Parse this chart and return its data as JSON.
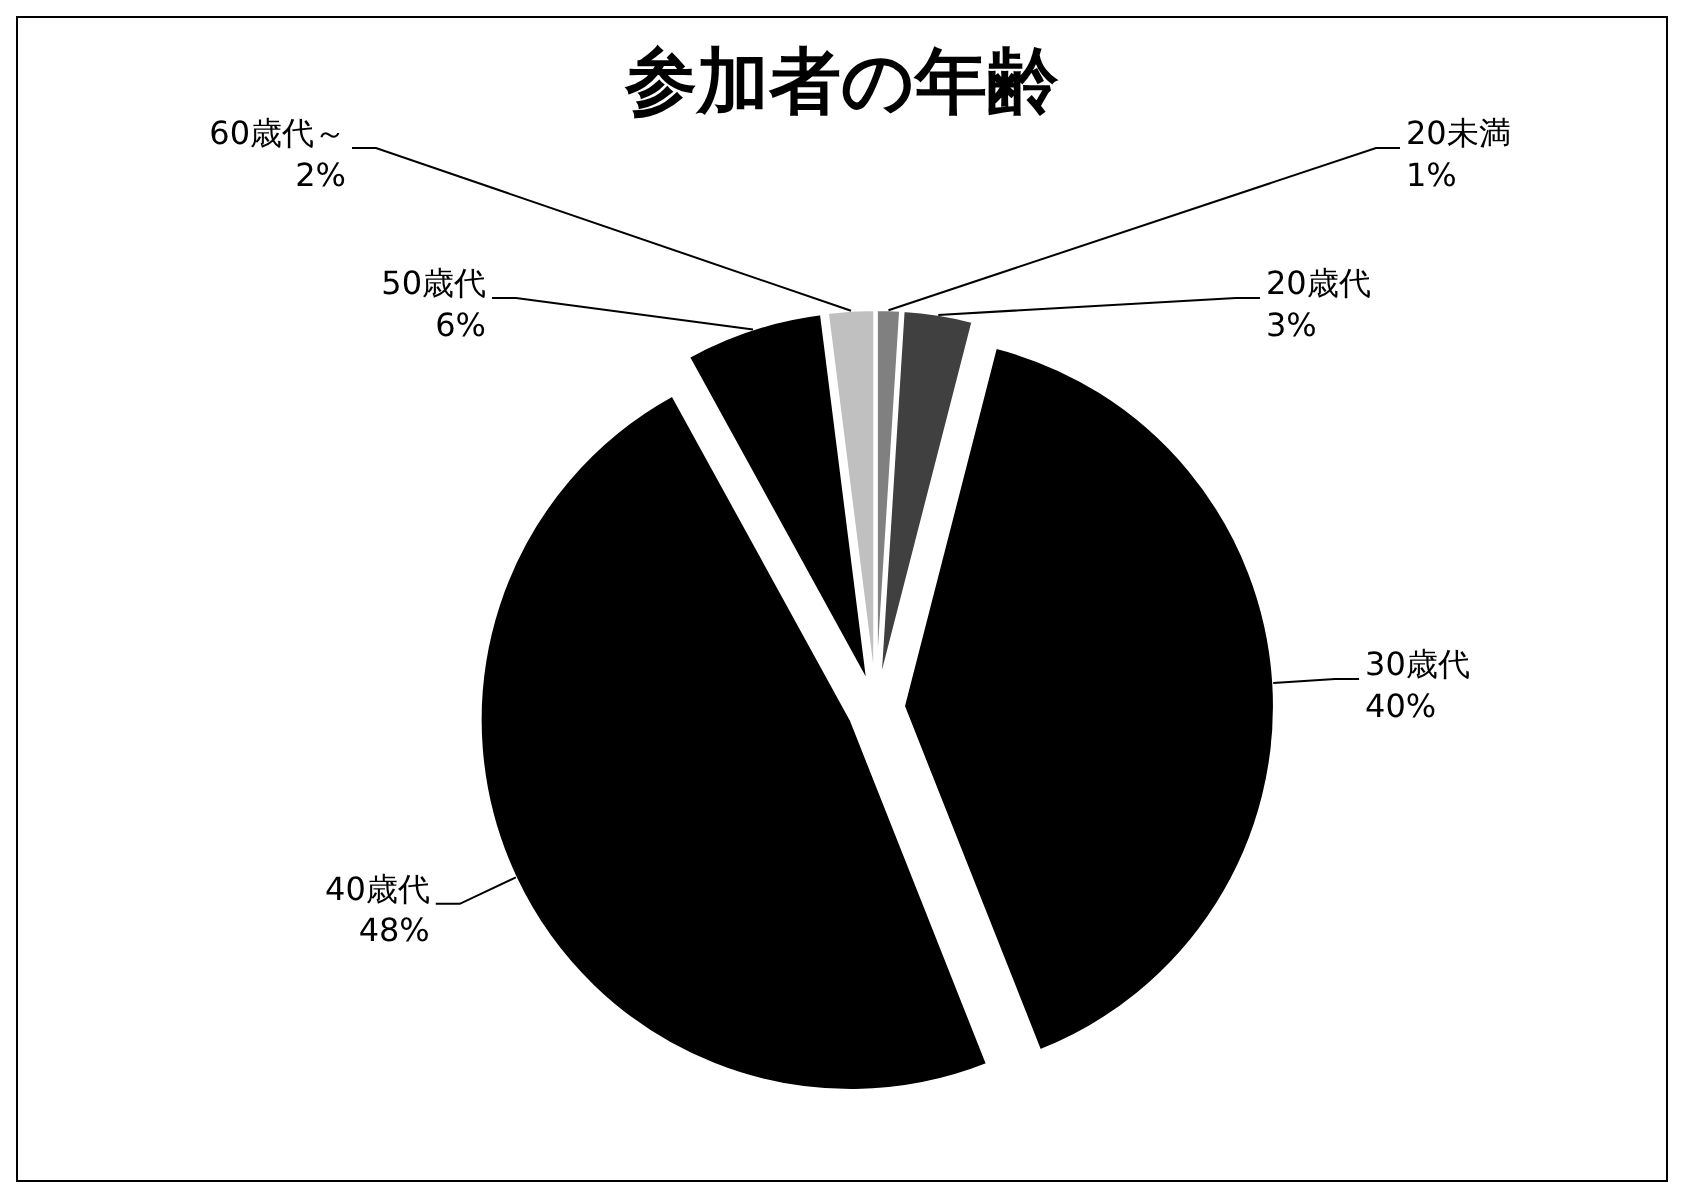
{
  "chart_data": {
    "type": "pie",
    "title": "参加者の年齢",
    "categories": [
      "20未満",
      "20歳代",
      "30歳代",
      "40歳代",
      "50歳代",
      "60歳代～"
    ],
    "values": [
      1,
      3,
      40,
      48,
      6,
      2
    ],
    "value_labels": [
      "1%",
      "3%",
      "40%",
      "48%",
      "6%",
      "2%"
    ],
    "colors": [
      "#808080",
      "#404040",
      "#000000",
      "#000000",
      "#000000",
      "#c0c0c0"
    ]
  }
}
